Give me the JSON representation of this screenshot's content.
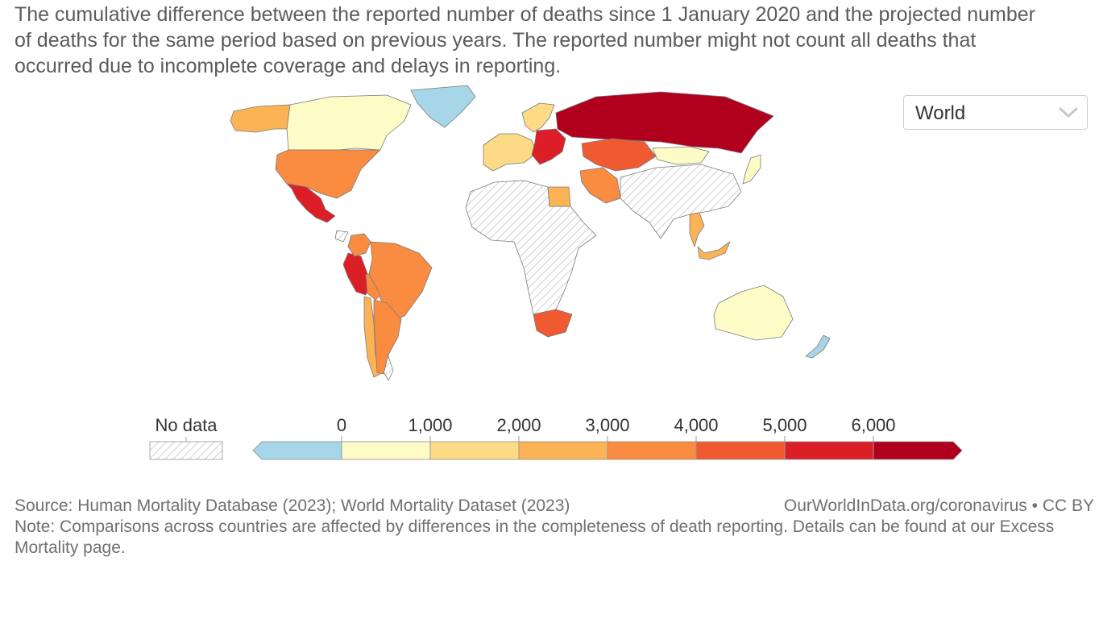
{
  "subtitle": "The cumulative difference between the reported number of deaths since 1 January 2020 and the projected number of deaths for the same period based on previous years. The reported number might not count all deaths that occurred due to incomplete coverage and delays in reporting.",
  "region_select": {
    "value": "World",
    "icon": "chevron-down-icon"
  },
  "legend": {
    "no_data_label": "No data",
    "ticks": [
      "0",
      "1,000",
      "2,000",
      "3,000",
      "4,000",
      "5,000",
      "6,000"
    ],
    "bins": [
      {
        "range": "< 0",
        "color": "#a6d6e8"
      },
      {
        "range": "0–1,000",
        "color": "#fdfbc6"
      },
      {
        "range": "1,000–2,000",
        "color": "#fddb86"
      },
      {
        "range": "2,000–3,000",
        "color": "#fbb356"
      },
      {
        "range": "3,000–4,000",
        "color": "#f98c40"
      },
      {
        "range": "4,000–5,000",
        "color": "#f05a31"
      },
      {
        "range": "5,000–6,000",
        "color": "#dc1f26"
      },
      {
        "range": "> 6,000",
        "color": "#b1001e"
      }
    ]
  },
  "map": {
    "regions": [
      {
        "name": "Greenland",
        "bin": 0
      },
      {
        "name": "Canada",
        "bin": 1
      },
      {
        "name": "Alaska",
        "bin": 3
      },
      {
        "name": "United States",
        "bin": 4
      },
      {
        "name": "Mexico",
        "bin": 6
      },
      {
        "name": "Peru",
        "bin": 6
      },
      {
        "name": "Bolivia",
        "bin": 4
      },
      {
        "name": "Brazil",
        "bin": 4
      },
      {
        "name": "Colombia",
        "bin": 4
      },
      {
        "name": "Chile",
        "bin": 3
      },
      {
        "name": "Argentina",
        "bin": 4
      },
      {
        "name": "Russia",
        "bin": 7
      },
      {
        "name": "Kazakhstan",
        "bin": 5
      },
      {
        "name": "Mongolia",
        "bin": 1
      },
      {
        "name": "Western Europe",
        "bin": 2
      },
      {
        "name": "Scandinavia",
        "bin": 2
      },
      {
        "name": "Eastern Europe",
        "bin": 6
      },
      {
        "name": "Egypt",
        "bin": 3
      },
      {
        "name": "Iran",
        "bin": 4
      },
      {
        "name": "South Africa",
        "bin": 5
      },
      {
        "name": "Thailand",
        "bin": 3
      },
      {
        "name": "Malaysia",
        "bin": 3
      },
      {
        "name": "Japan",
        "bin": 1
      },
      {
        "name": "Australia",
        "bin": 1
      },
      {
        "name": "New Zealand",
        "bin": 0
      }
    ],
    "no_data_color": "#e8e8e8"
  },
  "footer": {
    "source": "Source: Human Mortality Database (2023); World Mortality Dataset (2023)",
    "license": "OurWorldInData.org/coronavirus • CC BY",
    "note": "Note: Comparisons across countries are affected by differences in the completeness of death reporting. Details can be found at our Excess Mortality page."
  }
}
